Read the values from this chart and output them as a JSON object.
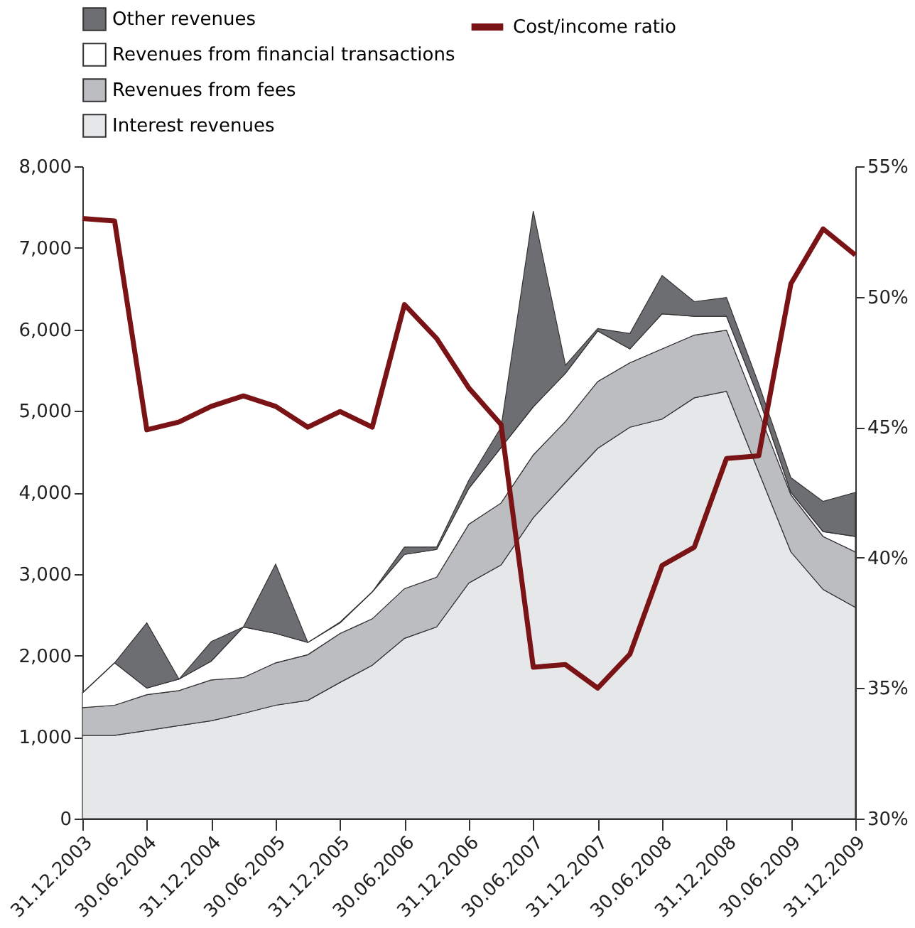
{
  "chart_data": {
    "type": "area",
    "stacked": true,
    "legend": "top",
    "grid": false,
    "categories": [
      "31.12.2003",
      null,
      "30.06.2004",
      null,
      "31.12.2004",
      null,
      "30.06.2005",
      null,
      "31.12.2005",
      null,
      "30.06.2006",
      null,
      "31.12.2006",
      null,
      "30.06.2007",
      null,
      "31.12.2007",
      null,
      "30.06.2008",
      null,
      "31.12.2008",
      null,
      "30.06.2009",
      null,
      "31.12.2009"
    ],
    "ylim": [
      0,
      8000
    ],
    "yticks": [
      {
        "value": 0,
        "label": "0"
      },
      {
        "value": 1000,
        "label": "1,000"
      },
      {
        "value": 2000,
        "label": "2,000"
      },
      {
        "value": 3000,
        "label": "3,000"
      },
      {
        "value": 4000,
        "label": "4,000"
      },
      {
        "value": 5000,
        "label": "5,000"
      },
      {
        "value": 6000,
        "label": "6,000"
      },
      {
        "value": 7000,
        "label": "7,000"
      },
      {
        "value": 8000,
        "label": "8,000"
      }
    ],
    "y2lim": [
      30,
      55
    ],
    "y2ticks": [
      {
        "value": 30,
        "label": "30%"
      },
      {
        "value": 35,
        "label": "35%"
      },
      {
        "value": 40,
        "label": "40%"
      },
      {
        "value": 45,
        "label": "45%"
      },
      {
        "value": 50,
        "label": "50%"
      },
      {
        "value": 55,
        "label": "55%"
      }
    ],
    "series": [
      {
        "name": "Interest revenues",
        "type": "area",
        "color": "#e6e7e9",
        "values": [
          1020,
          1020,
          1080,
          1140,
          1200,
          1290,
          1390,
          1450,
          1670,
          1880,
          2210,
          2350,
          2890,
          3110,
          3690,
          4120,
          4540,
          4800,
          4900,
          5160,
          5240,
          4250,
          3270,
          2810,
          2590
        ]
      },
      {
        "name": "Revenues from fees",
        "type": "area",
        "color": "#bcbdc1",
        "values": [
          340,
          370,
          440,
          430,
          500,
          440,
          520,
          560,
          600,
          570,
          610,
          610,
          720,
          760,
          770,
          750,
          820,
          790,
          860,
          770,
          750,
          740,
          700,
          650,
          680
        ]
      },
      {
        "name": "Revenues from financial transactions",
        "type": "area",
        "color": "#ffffff",
        "values": [
          180,
          520,
          80,
          140,
          230,
          620,
          360,
          150,
          130,
          330,
          420,
          340,
          440,
          680,
          590,
          590,
          620,
          170,
          430,
          230,
          170,
          170,
          30,
          60,
          190
        ]
      },
      {
        "name": "Other revenues",
        "type": "area",
        "color": "#6d6e72",
        "values": [
          0,
          0,
          800,
          0,
          240,
          0,
          850,
          0,
          10,
          0,
          90,
          30,
          100,
          250,
          2400,
          100,
          30,
          190,
          470,
          180,
          230,
          170,
          180,
          370,
          540
        ]
      },
      {
        "name": "Cost/income ratio",
        "type": "line",
        "axis": "y2",
        "color": "#7a1315",
        "values": [
          53.0,
          52.9,
          44.9,
          45.2,
          45.8,
          46.2,
          45.8,
          45.0,
          45.6,
          45.0,
          49.7,
          48.4,
          46.5,
          45.1,
          35.8,
          35.9,
          35.0,
          36.3,
          39.7,
          40.4,
          43.8,
          43.9,
          50.5,
          52.6,
          51.6
        ]
      }
    ]
  }
}
